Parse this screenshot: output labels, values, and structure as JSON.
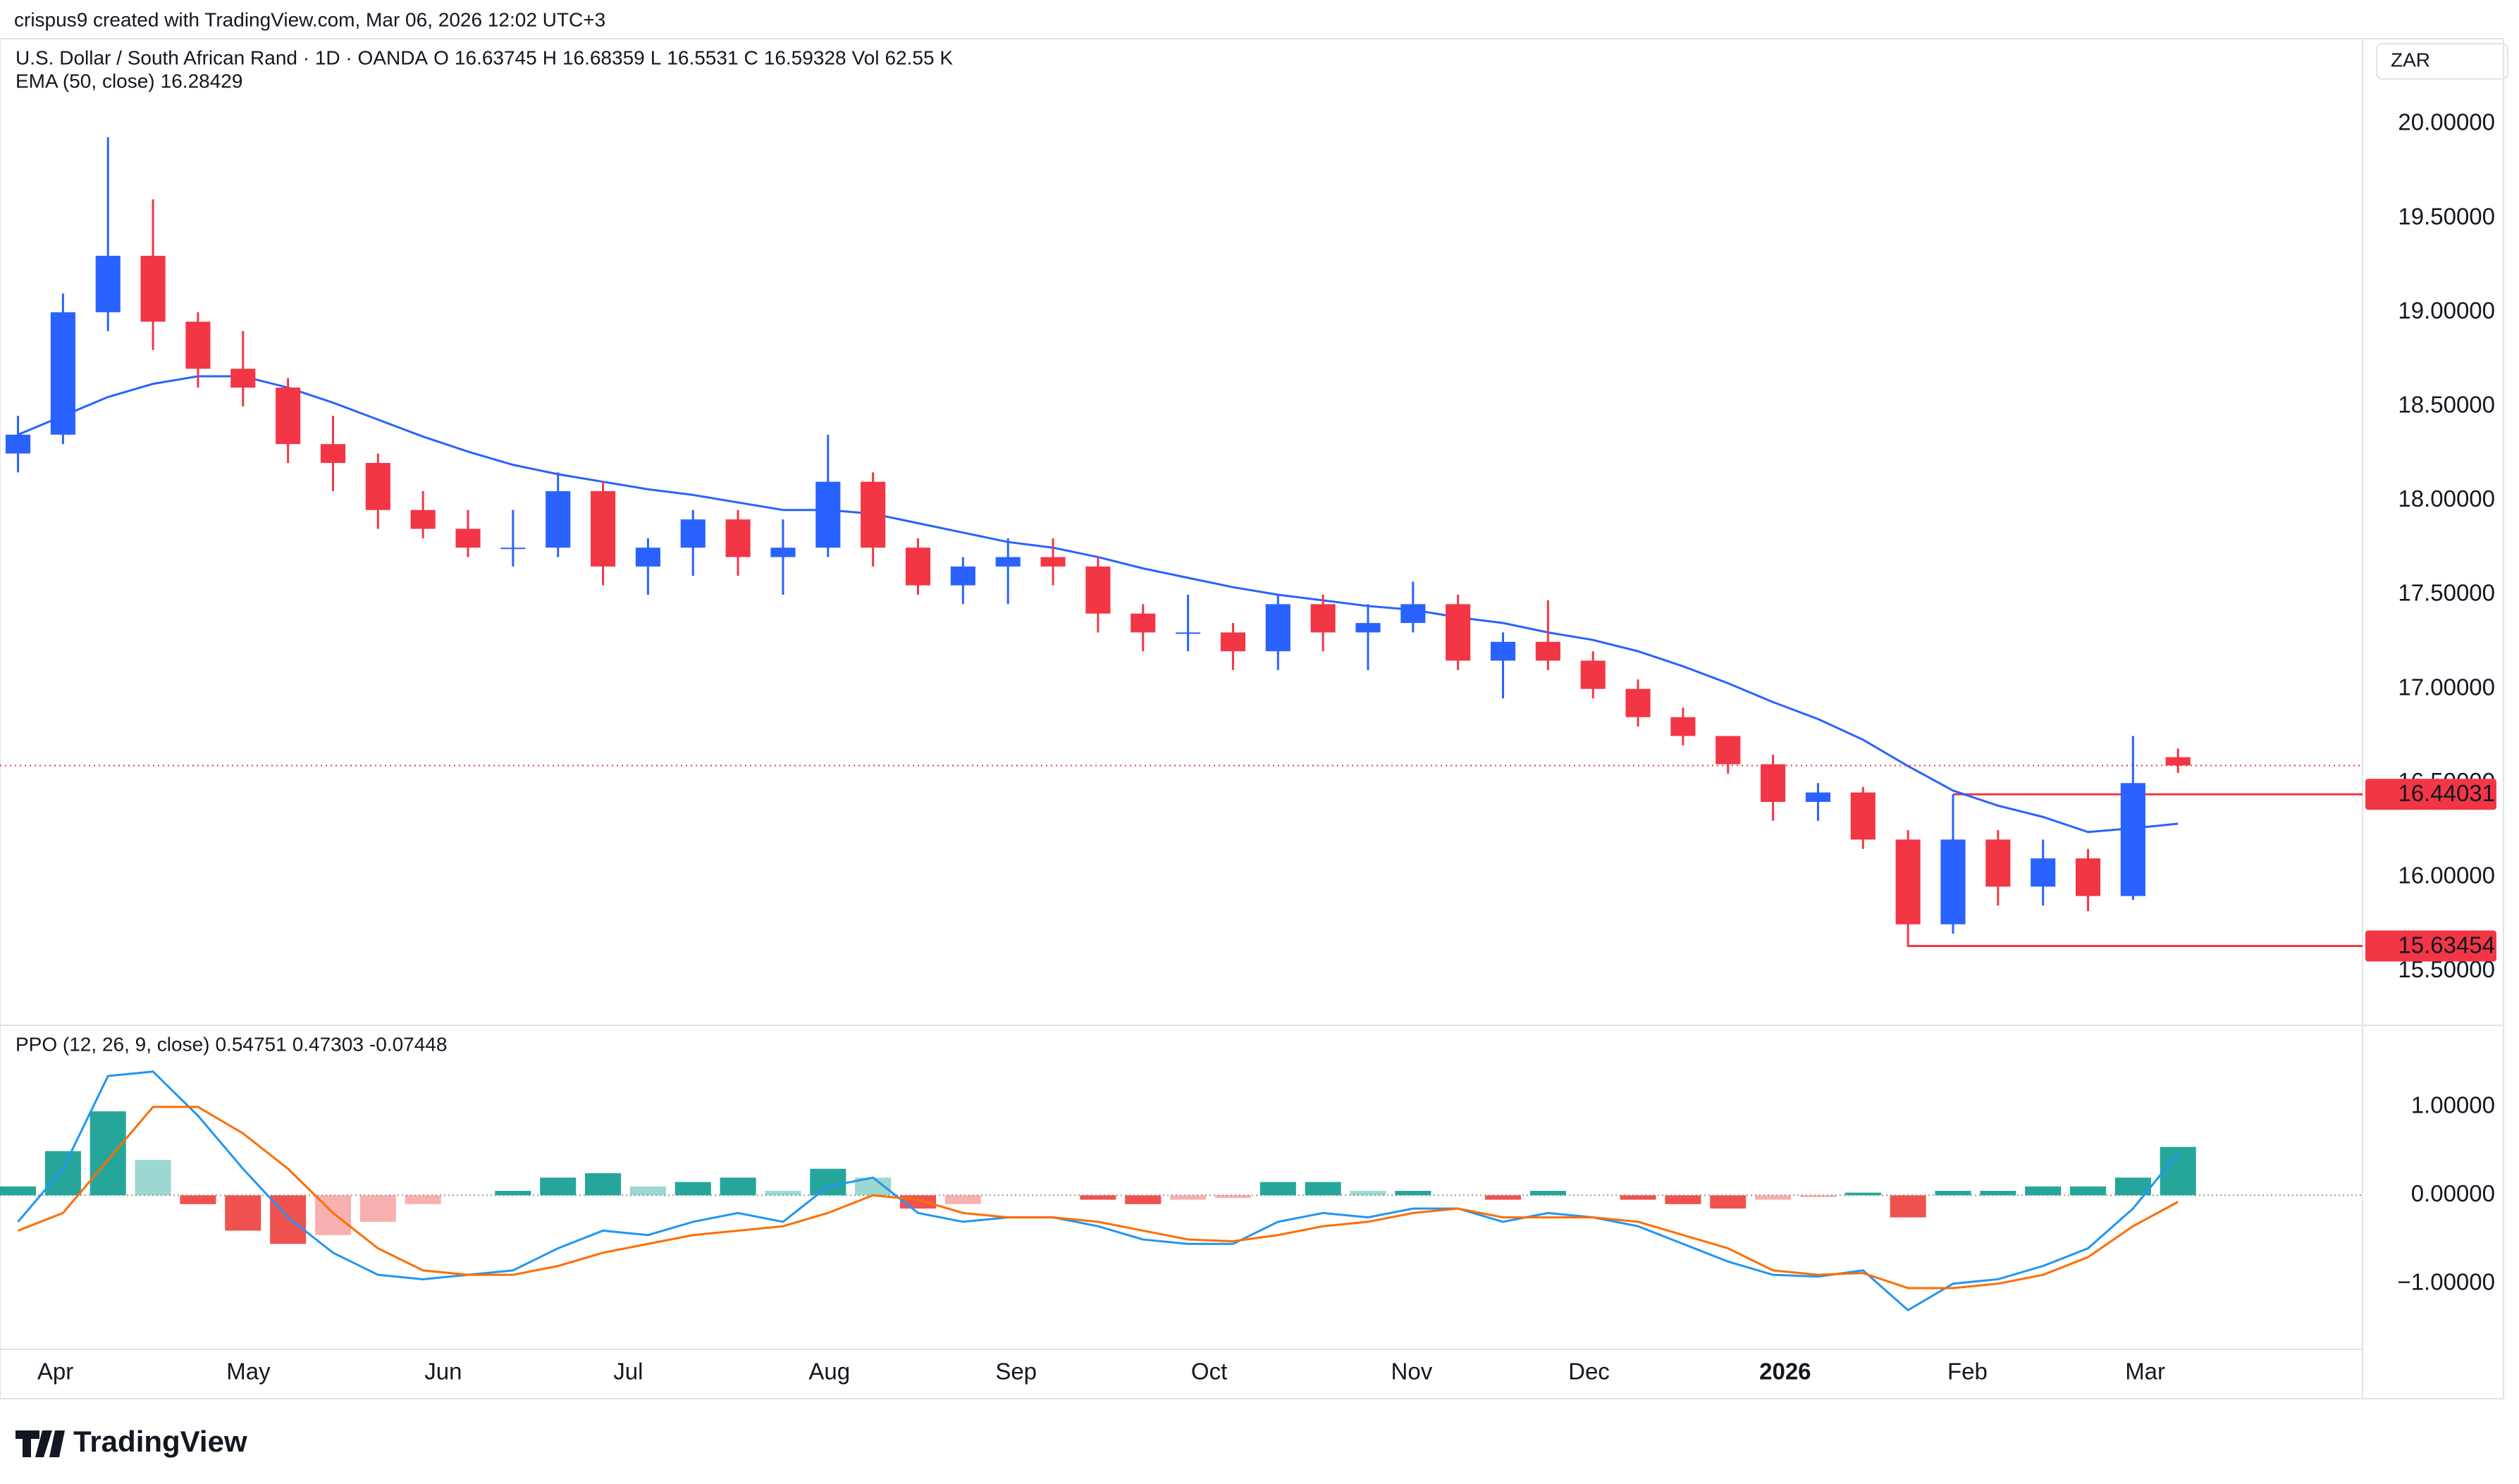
{
  "header": {
    "credit": "crispus9 created with TradingView.com, Mar 06, 2026 12:02 UTC+3",
    "logo": "TradingView",
    "currency": "ZAR"
  },
  "chart_data": {
    "type": "candlestick",
    "title": "U.S. Dollar / South African Rand · 1D · OANDA",
    "ohlc": [
      {
        "label": "O",
        "value": 16.63745
      },
      {
        "label": "H",
        "value": 16.68359
      },
      {
        "label": "L",
        "value": 16.5531
      },
      {
        "label": "C",
        "value": 16.59328
      },
      {
        "label": "Vol",
        "value": 62550,
        "value_label": "62.55 K"
      }
    ],
    "ema_label": "EMA (50, close)",
    "ema_last": 16.28429,
    "up_color": "#2962ff",
    "down_color": "#f23645",
    "ema_color": "#2962ff",
    "open": [
      18.25,
      18.35,
      19.0,
      19.3,
      18.95,
      18.7,
      18.6,
      18.3,
      18.2,
      17.95,
      17.85,
      17.75,
      17.75,
      18.05,
      17.65,
      17.75,
      17.9,
      17.7,
      17.75,
      18.1,
      17.75,
      17.55,
      17.65,
      17.7,
      17.65,
      17.4,
      17.3,
      17.3,
      17.2,
      17.45,
      17.3,
      17.35,
      17.45,
      17.15,
      17.25,
      17.15,
      17.0,
      16.85,
      16.75,
      16.6,
      16.4,
      16.45,
      16.2,
      15.75,
      16.2,
      15.95,
      16.1,
      15.9,
      16.63745
    ],
    "high": [
      18.45,
      19.1,
      19.93,
      19.6,
      19.0,
      18.9,
      18.65,
      18.45,
      18.25,
      18.05,
      17.95,
      17.95,
      18.15,
      18.1,
      17.8,
      17.95,
      17.95,
      17.9,
      18.35,
      18.15,
      17.8,
      17.7,
      17.8,
      17.8,
      17.7,
      17.45,
      17.5,
      17.35,
      17.5,
      17.5,
      17.45,
      17.57,
      17.5,
      17.3,
      17.47,
      17.2,
      17.05,
      16.9,
      16.75,
      16.65,
      16.5,
      16.48,
      16.25,
      16.44,
      16.25,
      16.2,
      16.15,
      16.75,
      16.68359
    ],
    "low": [
      18.15,
      18.3,
      18.9,
      18.8,
      18.6,
      18.5,
      18.2,
      18.05,
      17.85,
      17.8,
      17.7,
      17.65,
      17.7,
      17.55,
      17.5,
      17.6,
      17.6,
      17.5,
      17.7,
      17.65,
      17.5,
      17.45,
      17.45,
      17.55,
      17.3,
      17.2,
      17.2,
      17.1,
      17.1,
      17.2,
      17.1,
      17.3,
      17.1,
      16.95,
      17.1,
      16.95,
      16.8,
      16.7,
      16.55,
      16.3,
      16.3,
      16.15,
      15.63,
      15.7,
      15.85,
      15.85,
      15.82,
      15.88,
      16.5531
    ],
    "close": [
      18.35,
      19.0,
      19.3,
      18.95,
      18.7,
      18.6,
      18.3,
      18.2,
      17.95,
      17.85,
      17.75,
      17.75,
      18.05,
      17.65,
      17.75,
      17.9,
      17.7,
      17.75,
      18.1,
      17.75,
      17.55,
      17.65,
      17.7,
      17.65,
      17.4,
      17.3,
      17.3,
      17.2,
      17.45,
      17.3,
      17.35,
      17.45,
      17.15,
      17.25,
      17.15,
      17.0,
      16.85,
      16.75,
      16.6,
      16.4,
      16.45,
      16.2,
      15.75,
      16.2,
      15.95,
      16.1,
      15.9,
      16.5,
      16.59328
    ],
    "ema": [
      18.35,
      18.45,
      18.55,
      18.62,
      18.66,
      18.66,
      18.6,
      18.52,
      18.43,
      18.34,
      18.26,
      18.19,
      18.14,
      18.1,
      18.06,
      18.03,
      17.99,
      17.95,
      17.95,
      17.93,
      17.88,
      17.83,
      17.78,
      17.75,
      17.7,
      17.64,
      17.59,
      17.54,
      17.5,
      17.47,
      17.44,
      17.42,
      17.38,
      17.35,
      17.3,
      17.26,
      17.2,
      17.12,
      17.03,
      16.93,
      16.84,
      16.73,
      16.59,
      16.46,
      16.38,
      16.32,
      16.24,
      16.26,
      16.28429
    ],
    "ylim": [
      15.225,
      20.445
    ],
    "yticks": [
      {
        "value": 15.5,
        "label": "15.50000"
      },
      {
        "value": 16,
        "label": "16.00000"
      },
      {
        "value": 16.5,
        "label": "16.50000"
      },
      {
        "value": 17,
        "label": "17.00000"
      },
      {
        "value": 17.5,
        "label": "17.50000"
      },
      {
        "value": 18,
        "label": "18.00000"
      },
      {
        "value": 18.5,
        "label": "18.50000"
      },
      {
        "value": 19,
        "label": "19.00000"
      },
      {
        "value": 19.5,
        "label": "19.50000"
      },
      {
        "value": 20,
        "label": "20.00000"
      }
    ],
    "levels": [
      {
        "value": 16.44031,
        "from": 43
      },
      {
        "value": 15.63454,
        "from": 42
      }
    ],
    "xlim": [
      -0.4,
      52.1
    ],
    "xticks": [
      {
        "value": 0.83,
        "label": "Apr"
      },
      {
        "value": 5.12,
        "label": "May"
      },
      {
        "value": 9.45,
        "label": "Jun"
      },
      {
        "value": 13.56,
        "label": "Jul"
      },
      {
        "value": 18.03,
        "label": "Aug"
      },
      {
        "value": 22.18,
        "label": "Sep"
      },
      {
        "value": 26.47,
        "label": "Oct"
      },
      {
        "value": 30.97,
        "label": "Nov"
      },
      {
        "value": 34.91,
        "label": "Dec"
      },
      {
        "value": 39.27,
        "label": "2026"
      },
      {
        "value": 43.32,
        "label": "Feb"
      },
      {
        "value": 47.27,
        "label": "Mar"
      }
    ],
    "ppo": {
      "label": "PPO (12, 26, 9, close)",
      "hist_last": 0.54751,
      "ppo_last": 0.47303,
      "signal_last": -0.07448,
      "ppo_color": "#2196f3",
      "signal_color": "#ff6d00",
      "hist_up": "#26a69a",
      "hist_down": "#ef5350",
      "ylim": [
        -1.72,
        1.9
      ],
      "yticks": [
        {
          "value": -1,
          "label": "−1.00000"
        },
        {
          "value": 0,
          "label": "0.00000"
        },
        {
          "value": 1,
          "label": "1.00000"
        }
      ],
      "ppo_values": [
        -0.3,
        0.3,
        1.35,
        1.4,
        0.9,
        0.3,
        -0.25,
        -0.65,
        -0.9,
        -0.95,
        -0.9,
        -0.85,
        -0.6,
        -0.4,
        -0.45,
        -0.3,
        -0.2,
        -0.3,
        0.1,
        0.2,
        -0.2,
        -0.3,
        -0.25,
        -0.25,
        -0.35,
        -0.5,
        -0.55,
        -0.55,
        -0.3,
        -0.2,
        -0.25,
        -0.15,
        -0.15,
        -0.3,
        -0.2,
        -0.25,
        -0.35,
        -0.55,
        -0.75,
        -0.9,
        -0.92,
        -0.85,
        -1.3,
        -1.0,
        -0.95,
        -0.8,
        -0.6,
        -0.15,
        0.47303
      ],
      "signal_values": [
        -0.4,
        -0.2,
        0.4,
        1.0,
        1.0,
        0.7,
        0.3,
        -0.2,
        -0.6,
        -0.85,
        -0.9,
        -0.9,
        -0.8,
        -0.65,
        -0.55,
        -0.45,
        -0.4,
        -0.35,
        -0.2,
        0.0,
        -0.05,
        -0.2,
        -0.25,
        -0.25,
        -0.3,
        -0.4,
        -0.5,
        -0.52,
        -0.45,
        -0.35,
        -0.3,
        -0.2,
        -0.15,
        -0.25,
        -0.25,
        -0.25,
        -0.3,
        -0.45,
        -0.6,
        -0.85,
        -0.9,
        -0.88,
        -1.05,
        -1.05,
        -1.0,
        -0.9,
        -0.7,
        -0.35,
        -0.07448
      ],
      "hist_values": [
        0.1,
        0.5,
        0.95,
        0.4,
        -0.1,
        -0.4,
        -0.55,
        -0.45,
        -0.3,
        -0.1,
        0,
        0.05,
        0.2,
        0.25,
        0.1,
        0.15,
        0.2,
        0.05,
        0.3,
        0.2,
        -0.15,
        -0.1,
        0,
        0,
        -0.05,
        -0.1,
        -0.05,
        -0.03,
        0.15,
        0.15,
        0.05,
        0.05,
        0,
        -0.05,
        0.05,
        0,
        -0.05,
        -0.1,
        -0.15,
        -0.05,
        -0.02,
        0.03,
        -0.25,
        0.05,
        0.05,
        0.1,
        0.1,
        0.2,
        0.54751
      ]
    }
  }
}
